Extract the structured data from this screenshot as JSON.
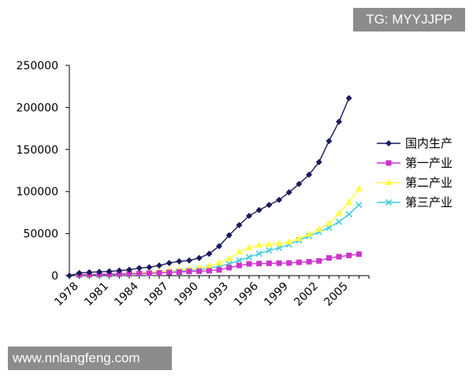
{
  "watermarks": {
    "top": "TG: MYYJJPP",
    "bottom": "www.nnlangfeng.com"
  },
  "chart_data": {
    "type": "line",
    "title": "",
    "xlabel": "",
    "ylabel": "",
    "ylim": [
      0,
      250000
    ],
    "yticks": [
      0,
      50000,
      100000,
      150000,
      200000,
      250000
    ],
    "ytick_labels": [
      "0",
      "50000",
      "100000",
      "150000",
      "200000",
      "250000"
    ],
    "x": [
      1978,
      1979,
      1980,
      1981,
      1982,
      1983,
      1984,
      1985,
      1986,
      1987,
      1988,
      1989,
      1990,
      1991,
      1992,
      1993,
      1994,
      1995,
      1996,
      1997,
      1998,
      1999,
      2000,
      2001,
      2002,
      2003,
      2004,
      2005,
      2006,
      2007
    ],
    "xtick_labels": [
      "1978",
      "1981",
      "1984",
      "1987",
      "1990",
      "1993",
      "1996",
      "1999",
      "2002",
      "2005"
    ],
    "xtick_values": [
      1978,
      1981,
      1984,
      1987,
      1990,
      1993,
      1996,
      1999,
      2002,
      2005
    ],
    "legend_position": "right",
    "grid": false,
    "series": [
      {
        "name": "国内生产",
        "color": "#1a1a5e",
        "marker": "diamond",
        "values": [
          0,
          3000,
          4000,
          4500,
          5000,
          6000,
          7000,
          9000,
          10000,
          12000,
          15000,
          17000,
          18000,
          21000,
          26000,
          35000,
          48000,
          60000,
          71000,
          78000,
          84000,
          90000,
          99000,
          109000,
          120000,
          135000,
          160000,
          183000,
          211000,
          null
        ]
      },
      {
        "name": "第一产业",
        "color": "#cc33cc",
        "marker": "square",
        "values": [
          null,
          1000,
          1200,
          1500,
          1800,
          2000,
          2300,
          2600,
          2800,
          3200,
          3800,
          4200,
          5000,
          5300,
          5800,
          6800,
          9500,
          12000,
          14000,
          14300,
          14600,
          14800,
          15000,
          15800,
          16500,
          17500,
          21000,
          22500,
          24000,
          25500
        ]
      },
      {
        "name": "第二产业",
        "color": "#ffff44",
        "marker": "triangle",
        "values": [
          null,
          1500,
          1700,
          1800,
          2000,
          2200,
          2800,
          3400,
          4000,
          4600,
          5800,
          6500,
          7500,
          9000,
          11000,
          15000,
          20000,
          28000,
          33000,
          36000,
          37000,
          38000,
          40000,
          44000,
          49000,
          55000,
          62000,
          74000,
          87000,
          103000
        ]
      },
      {
        "name": "第三产业",
        "color": "#44ccdd",
        "marker": "x",
        "values": [
          null,
          800,
          900,
          1000,
          1200,
          1400,
          1800,
          2200,
          2700,
          3300,
          4000,
          5000,
          6000,
          7000,
          9000,
          11000,
          14000,
          18000,
          22000,
          26000,
          30000,
          33000,
          37000,
          42000,
          47000,
          52000,
          57000,
          64000,
          73000,
          84000
        ]
      }
    ]
  }
}
